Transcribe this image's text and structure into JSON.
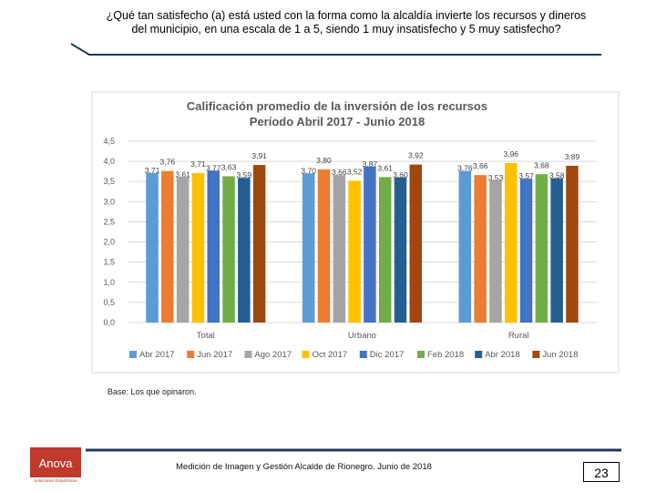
{
  "question": "¿Qué tan satisfecho (a) está usted con la forma como la alcaldía invierte los recursos y dineros del municipio, en una escala de 1 a 5, siendo 1 muy insatisfecho y 5 muy satisfecho?",
  "base_note": "Base: Los que opinaron.",
  "footer_text": "Medición de Imagen y Gestión Alcalde de Rionegro. Junio de 2018",
  "page_number": "23",
  "logo": {
    "name": "Anova",
    "tagline": "Soluciones Estadísticas",
    "color": "#c0392b"
  },
  "colors": {
    "rule": "#1f3864"
  },
  "chart_data": {
    "type": "bar",
    "title": "Calificación promedio de la inversión de los recursos",
    "subtitle": "Período Abril 2017 - Junio 2018",
    "categories": [
      "Total",
      "Urbano",
      "Rural"
    ],
    "ylim": [
      0,
      4.5
    ],
    "yticks": [
      "0,0",
      "0,5",
      "1,0",
      "1,5",
      "2,0",
      "2,5",
      "3,0",
      "3,5",
      "4,0",
      "4,5"
    ],
    "grid": true,
    "legend_position": "bottom",
    "series": [
      {
        "name": "Abr 2017",
        "color": "#5b9bd5",
        "values": [
          3.71,
          3.7,
          3.76
        ],
        "labels": [
          "3,71",
          "3,70",
          "3,76"
        ]
      },
      {
        "name": "Jun 2017",
        "color": "#ed7d31",
        "values": [
          3.76,
          3.8,
          3.66
        ],
        "labels": [
          "3,76",
          "3,80",
          "3,66"
        ]
      },
      {
        "name": "Ago 2017",
        "color": "#a5a5a5",
        "values": [
          3.61,
          3.66,
          3.53
        ],
        "labels": [
          "3,61",
          "3,66",
          "3,53"
        ]
      },
      {
        "name": "Oct 2017",
        "color": "#ffc000",
        "values": [
          3.71,
          3.52,
          3.96
        ],
        "labels": [
          "3,71",
          "3,52",
          "3,96"
        ]
      },
      {
        "name": "Dic 2017",
        "color": "#4472c4",
        "values": [
          3.77,
          3.87,
          3.57
        ],
        "labels": [
          "3,77",
          "3,87",
          "3,57"
        ]
      },
      {
        "name": "Feb 2018",
        "color": "#70ad47",
        "values": [
          3.63,
          3.61,
          3.68
        ],
        "labels": [
          "3,63",
          "3,61",
          "3,68"
        ]
      },
      {
        "name": "Abr 2018",
        "color": "#255e91",
        "values": [
          3.59,
          3.6,
          3.58
        ],
        "labels": [
          "3,59",
          "3,60",
          "3,58"
        ]
      },
      {
        "name": "Jun 2018",
        "color": "#9e480e",
        "values": [
          3.91,
          3.92,
          3.89
        ],
        "labels": [
          "3,91",
          "3,92",
          "3,89"
        ]
      }
    ]
  }
}
